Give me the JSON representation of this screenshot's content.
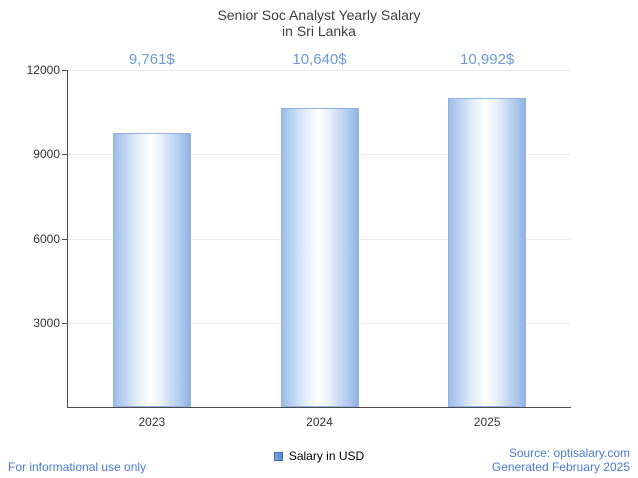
{
  "chart_data": {
    "type": "bar",
    "title": "Senior Soc Analyst Yearly Salary in Sri Lanka",
    "title_lines": [
      "Senior Soc Analyst Yearly Salary",
      "in Sri Lanka"
    ],
    "categories": [
      "2023",
      "2024",
      "2025"
    ],
    "values": [
      9761,
      10640,
      10992
    ],
    "value_labels": [
      "9,761$",
      "10,640$",
      "10,992$"
    ],
    "xlabel": "",
    "ylabel": "",
    "ylim": [
      0,
      12000
    ],
    "yticks": [
      3000,
      6000,
      9000,
      12000
    ],
    "grid": true,
    "legend_position": "bottom",
    "legend": [
      {
        "label": "Salary in USD",
        "color": "#5b8ccc"
      }
    ]
  },
  "footer": {
    "left": "For informational use only",
    "source": "Source: optisalary.com",
    "generated": "Generated February 2025"
  },
  "colors": {
    "bar_edge": "#94b2e2",
    "bar_fill_light": "#ffffff",
    "bar_fill_blue": "#9dbdea",
    "value_label": "#6d9bd4",
    "footer_text": "#4a7ad2",
    "title_text": "#3d3d3d",
    "axis": "#4a4a4a",
    "gridline": "#ebebeb"
  }
}
